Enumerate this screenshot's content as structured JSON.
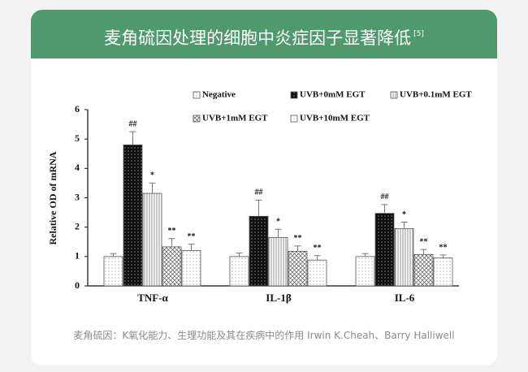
{
  "header": {
    "title": "麦角硫因处理的细胞中炎症因子显著降低",
    "reference": "[5]"
  },
  "chart_data": {
    "type": "bar",
    "y_label": "Relative OD of mRNA",
    "categories": [
      "TNF-α",
      "IL-1β",
      "IL-6"
    ],
    "ylim": [
      0,
      6
    ],
    "yticks": [
      0,
      1,
      2,
      3,
      4,
      5,
      6
    ],
    "series": [
      {
        "name": "Negative",
        "color": "#ffffff",
        "pattern": "dots",
        "values": [
          1.0,
          1.0,
          1.0
        ],
        "errors": [
          0.1,
          0.12,
          0.1
        ]
      },
      {
        "name": "UVB+0mM EGT",
        "color": "#111111",
        "pattern": "dark-dots",
        "values": [
          4.8,
          2.37,
          2.47
        ],
        "errors": [
          0.45,
          0.55,
          0.3
        ],
        "annotations": [
          "##",
          "##",
          "##"
        ]
      },
      {
        "name": "UVB+0.1mM EGT",
        "color": "#ffffff",
        "pattern": "vlines",
        "values": [
          3.15,
          1.65,
          1.95
        ],
        "errors": [
          0.35,
          0.28,
          0.22
        ],
        "annotations": [
          "*",
          "*",
          "*"
        ]
      },
      {
        "name": "UVB+1mM EGT",
        "color": "#ffffff",
        "pattern": "crosshatch",
        "values": [
          1.33,
          1.18,
          1.07
        ],
        "errors": [
          0.28,
          0.18,
          0.17
        ],
        "annotations": [
          "**",
          "**",
          "**"
        ]
      },
      {
        "name": "UVB+10mM EGT",
        "color": "#ffffff",
        "pattern": "dots",
        "values": [
          1.2,
          0.88,
          0.95
        ],
        "errors": [
          0.22,
          0.15,
          0.1
        ],
        "annotations": [
          "**",
          "**",
          "**"
        ]
      }
    ]
  },
  "footer": {
    "source": "麦角硫因：K氧化能力、生理功能及其在疾病中的作用 Irwin K.Cheah、Barry Halliwell"
  }
}
